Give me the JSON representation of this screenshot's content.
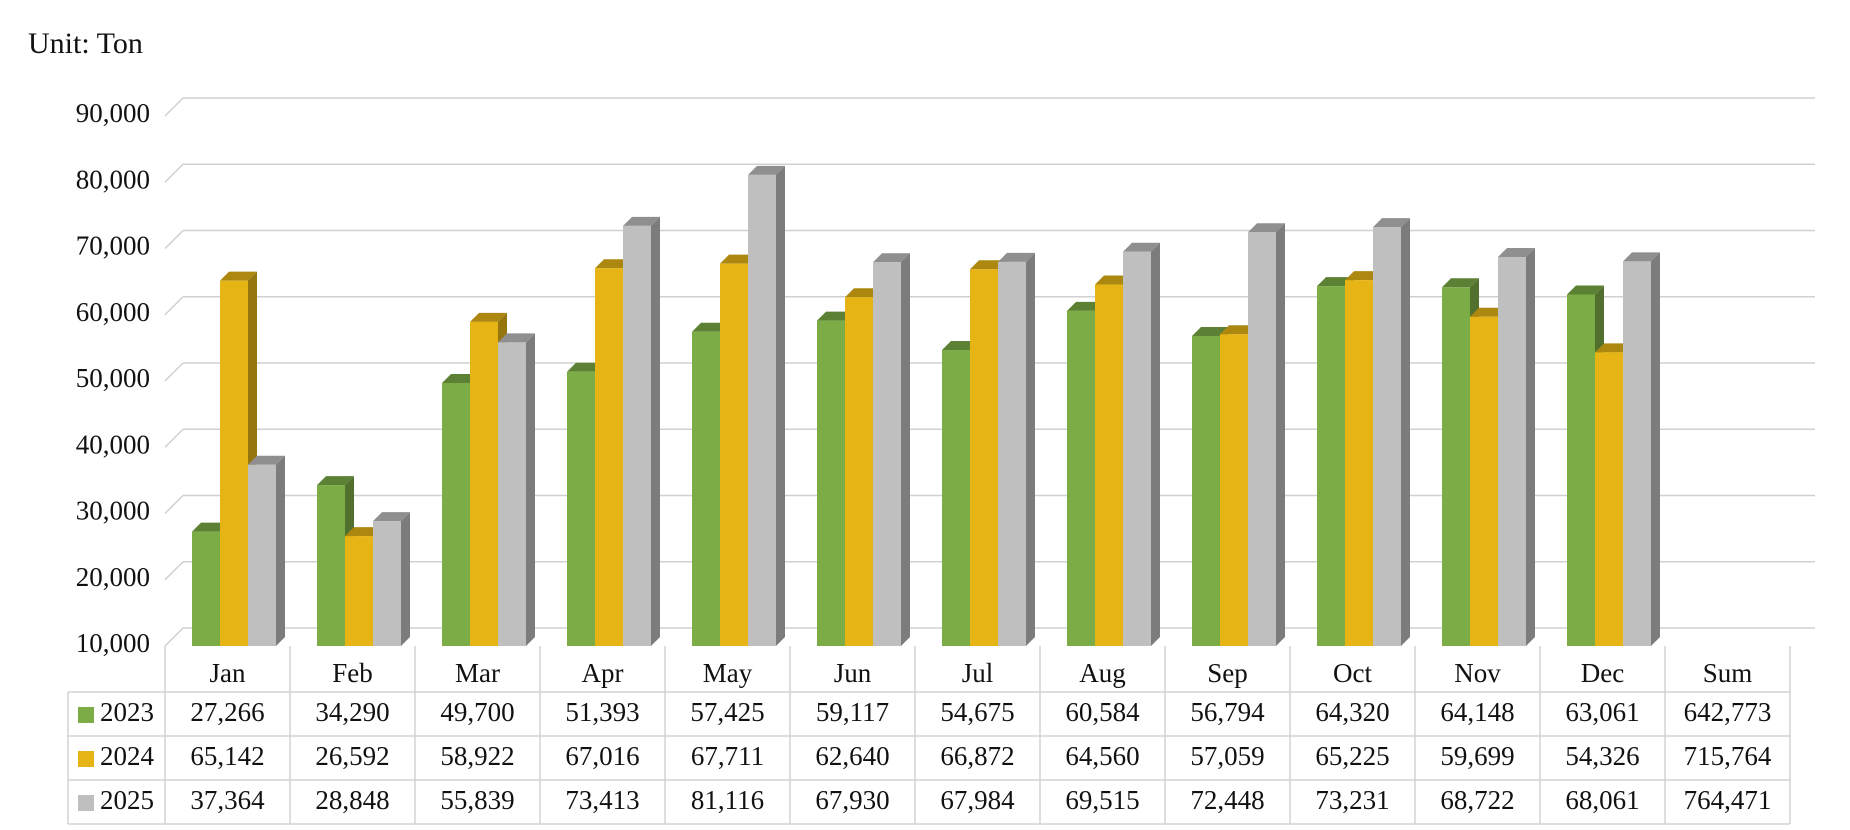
{
  "chart_data": {
    "type": "bar",
    "title": "Unit: Ton",
    "categories": [
      "Jan",
      "Feb",
      "Mar",
      "Apr",
      "May",
      "Jun",
      "Jul",
      "Aug",
      "Sep",
      "Oct",
      "Nov",
      "Dec"
    ],
    "total_header": "Sum",
    "series": [
      {
        "name": "2023",
        "color": "#7cac45",
        "values": [
          27266,
          34290,
          49700,
          51393,
          57425,
          59117,
          54675,
          60584,
          56794,
          64320,
          64148,
          63061
        ],
        "value_labels": [
          "27,266",
          "34,290",
          "49,700",
          "51,393",
          "57,425",
          "59,117",
          "54,675",
          "60,584",
          "56,794",
          "64,320",
          "64,148",
          "63,061"
        ],
        "total": {
          "value": 642773,
          "label": "642,773"
        }
      },
      {
        "name": "2024",
        "color": "#e6b515",
        "values": [
          65142,
          26592,
          58922,
          67016,
          67711,
          62640,
          66872,
          64560,
          57059,
          65225,
          59699,
          54326
        ],
        "value_labels": [
          "65,142",
          "26,592",
          "58,922",
          "67,016",
          "67,711",
          "62,640",
          "66,872",
          "64,560",
          "57,059",
          "65,225",
          "59,699",
          "54,326"
        ],
        "total": {
          "value": 715764,
          "label": "715,764"
        }
      },
      {
        "name": "2025",
        "color": "#bfbfbf",
        "values": [
          37364,
          28848,
          55839,
          73413,
          81116,
          67930,
          67984,
          69515,
          72448,
          73231,
          68722,
          68061
        ],
        "value_labels": [
          "37,364",
          "28,848",
          "55,839",
          "73,413",
          "81,116",
          "67,930",
          "67,984",
          "69,515",
          "72,448",
          "73,231",
          "68,722",
          "68,061"
        ],
        "total": {
          "value": 764471,
          "label": "764,471"
        }
      }
    ],
    "ylim": [
      10000,
      90000
    ],
    "yticks": [
      {
        "value": 10000,
        "label": "10,000"
      },
      {
        "value": 20000,
        "label": "20,000"
      },
      {
        "value": 30000,
        "label": "30,000"
      },
      {
        "value": 40000,
        "label": "40,000"
      },
      {
        "value": 50000,
        "label": "50,000"
      },
      {
        "value": 60000,
        "label": "60,000"
      },
      {
        "value": 70000,
        "label": "70,000"
      },
      {
        "value": 80000,
        "label": "80,000"
      },
      {
        "value": 90000,
        "label": "90,000"
      }
    ],
    "grid": true
  }
}
